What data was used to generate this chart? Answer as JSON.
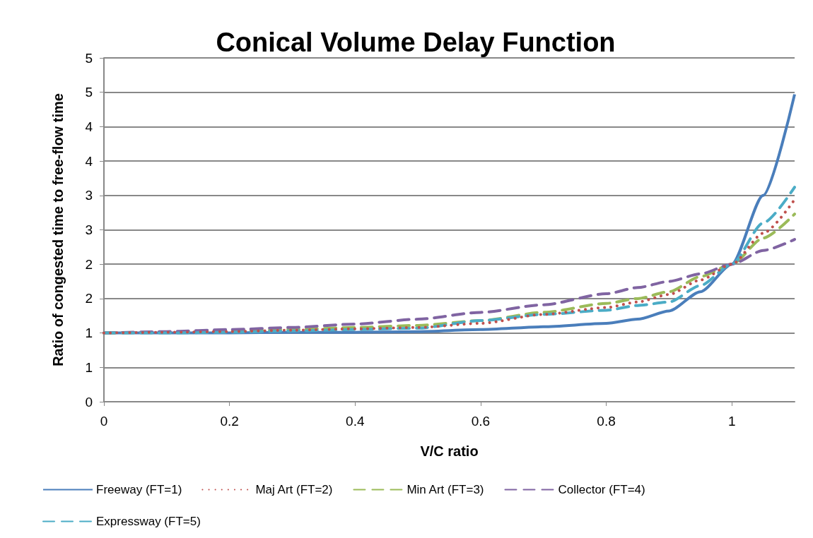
{
  "chart_data": {
    "type": "line",
    "title": "Conical Volume Delay Function",
    "xlabel": "V/C ratio",
    "ylabel": "Ratio of congested time to free-flow time",
    "xlim": [
      0,
      1.1
    ],
    "xticks": [
      0,
      0.2,
      0.4,
      0.6,
      0.8,
      1
    ],
    "ylim": [
      0,
      5
    ],
    "yticks": [
      0,
      {
        "value": 0.5,
        "label": "1"
      },
      1,
      {
        "value": 1.5,
        "label": "2"
      },
      2,
      {
        "value": 2.5,
        "label": "3"
      },
      3,
      {
        "value": 3.5,
        "label": "4"
      },
      4,
      {
        "value": 4.5,
        "label": "5"
      },
      5
    ],
    "grid": "y",
    "legend": "bottom",
    "marker": "none",
    "x": [
      0,
      0.1,
      0.2,
      0.3,
      0.4,
      0.5,
      0.6,
      0.7,
      0.8,
      0.85,
      0.9,
      0.95,
      1,
      1.05,
      1.1
    ],
    "series": [
      {
        "name": "Freeway (FT=1)",
        "color": "#4a7ebb",
        "line_style": "solid",
        "values": [
          1,
          1,
          1,
          1.01,
          1.01,
          1.02,
          1.05,
          1.09,
          1.14,
          1.2,
          1.32,
          1.6,
          2,
          3.0,
          4.47
        ]
      },
      {
        "name": "Maj Art (FT=2)",
        "color": "#c0504d",
        "line_style": "dotted",
        "values": [
          1,
          1.01,
          1.02,
          1.04,
          1.06,
          1.08,
          1.14,
          1.27,
          1.37,
          1.45,
          1.56,
          1.77,
          2,
          2.45,
          2.94
        ]
      },
      {
        "name": "Min Art (FT=3)",
        "color": "#9bbb59",
        "line_style": "dashed",
        "values": [
          1,
          1.01,
          1.03,
          1.05,
          1.08,
          1.11,
          1.18,
          1.3,
          1.43,
          1.5,
          1.6,
          1.82,
          2,
          2.38,
          2.73
        ]
      },
      {
        "name": "Collector (FT=4)",
        "color": "#8064a2",
        "line_style": "dashed",
        "values": [
          1,
          1.02,
          1.05,
          1.08,
          1.13,
          1.2,
          1.3,
          1.41,
          1.57,
          1.66,
          1.75,
          1.86,
          2,
          2.2,
          2.36
        ]
      },
      {
        "name": "Expressway (FT=5)",
        "color": "#4bacc6",
        "line_style": "dashed",
        "values": [
          1,
          1,
          1.01,
          1.03,
          1.05,
          1.07,
          1.18,
          1.27,
          1.33,
          1.4,
          1.45,
          1.69,
          2,
          2.6,
          3.12
        ]
      }
    ]
  }
}
